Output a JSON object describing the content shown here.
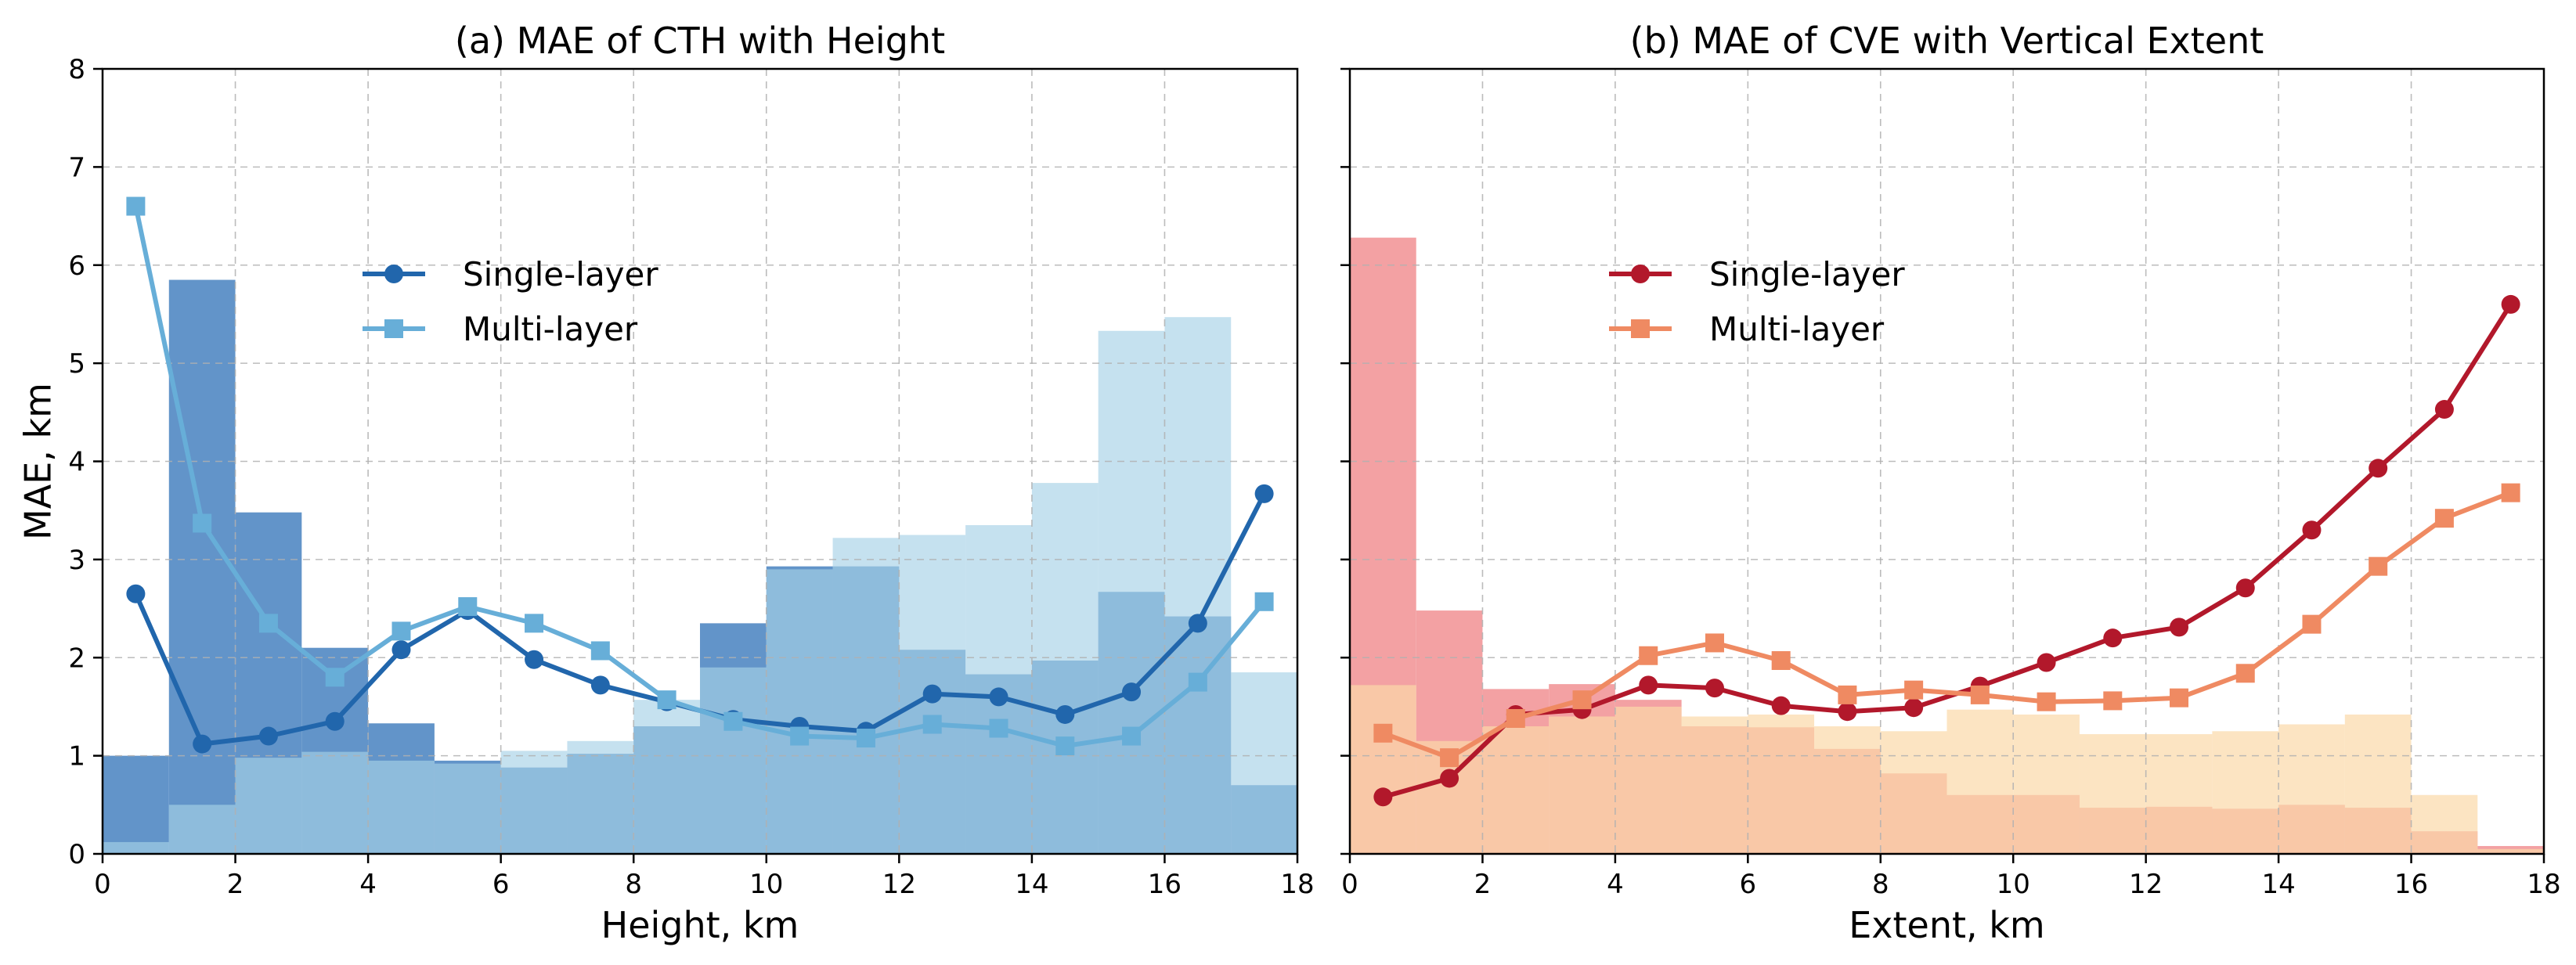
{
  "figure": {
    "background": "#ffffff",
    "grid": true
  },
  "chart_data": [
    {
      "id": "a",
      "type": "line",
      "title": "(a) MAE of CTH with Height",
      "xlabel": "Height, km",
      "ylabel": "MAE, km",
      "xlim": [
        0,
        18
      ],
      "ylim": [
        0,
        8
      ],
      "xticks": [
        0,
        2,
        4,
        6,
        8,
        10,
        12,
        14,
        16,
        18
      ],
      "yticks": [
        0,
        1,
        2,
        3,
        4,
        5,
        6,
        7,
        8
      ],
      "x": [
        0.5,
        1.5,
        2.5,
        3.5,
        4.5,
        5.5,
        6.5,
        7.5,
        8.5,
        9.5,
        10.5,
        11.5,
        12.5,
        13.5,
        14.5,
        15.5,
        16.5,
        17.5
      ],
      "series": [
        {
          "name": "Single-layer",
          "marker": "circle",
          "color": "#2166ac",
          "values": [
            2.65,
            1.12,
            1.2,
            1.35,
            2.08,
            2.48,
            1.98,
            1.72,
            1.55,
            1.37,
            1.3,
            1.25,
            1.63,
            1.6,
            1.42,
            1.65,
            2.35,
            3.67
          ]
        },
        {
          "name": "Multi-layer",
          "marker": "square",
          "color": "#67aed8",
          "values": [
            6.6,
            3.37,
            2.35,
            1.8,
            2.27,
            2.52,
            2.35,
            2.07,
            1.57,
            1.35,
            1.2,
            1.18,
            1.32,
            1.28,
            1.1,
            1.2,
            1.75,
            2.57
          ]
        }
      ],
      "histograms": [
        {
          "name": "Single-layer distribution",
          "color": "#5a8ec6",
          "opacity": 0.95,
          "bin_edges": [
            0,
            1,
            2,
            3,
            4,
            5,
            6,
            7,
            8,
            9,
            10,
            11,
            12,
            13,
            14,
            15,
            16,
            17,
            18
          ],
          "values": [
            1.0,
            5.85,
            3.48,
            2.1,
            1.33,
            0.95,
            0.88,
            1.02,
            1.3,
            2.35,
            2.93,
            2.93,
            2.08,
            1.83,
            1.97,
            2.67,
            2.42,
            0.7
          ]
        },
        {
          "name": "Multi-layer distribution",
          "color": "#a6d1e6",
          "opacity": 0.65,
          "bin_edges": [
            0,
            1,
            2,
            3,
            4,
            5,
            6,
            7,
            8,
            9,
            10,
            11,
            12,
            13,
            14,
            15,
            16,
            17,
            18
          ],
          "values": [
            0.12,
            0.5,
            0.98,
            1.04,
            0.95,
            0.92,
            1.05,
            1.15,
            1.57,
            1.9,
            2.9,
            3.22,
            3.25,
            3.35,
            3.78,
            5.33,
            5.47,
            1.85
          ]
        }
      ],
      "legend": {
        "position": "upper-center"
      }
    },
    {
      "id": "b",
      "type": "line",
      "title": "(b) MAE of CVE with Vertical Extent",
      "xlabel": "Extent, km",
      "ylabel": "",
      "xlim": [
        0,
        18
      ],
      "ylim": [
        0,
        8
      ],
      "xticks": [
        0,
        2,
        4,
        6,
        8,
        10,
        12,
        14,
        16,
        18
      ],
      "yticks": [
        0,
        1,
        2,
        3,
        4,
        5,
        6,
        7,
        8
      ],
      "x": [
        0.5,
        1.5,
        2.5,
        3.5,
        4.5,
        5.5,
        6.5,
        7.5,
        8.5,
        9.5,
        10.5,
        11.5,
        12.5,
        13.5,
        14.5,
        15.5,
        16.5,
        17.5
      ],
      "series": [
        {
          "name": "Single-layer",
          "marker": "circle",
          "color": "#b2182b",
          "values": [
            0.58,
            0.77,
            1.42,
            1.47,
            1.72,
            1.69,
            1.51,
            1.45,
            1.49,
            1.71,
            1.95,
            2.2,
            2.31,
            2.71,
            3.3,
            3.93,
            4.53,
            5.6
          ]
        },
        {
          "name": "Multi-layer",
          "marker": "square",
          "color": "#ef8a62",
          "values": [
            1.23,
            0.98,
            1.38,
            1.57,
            2.02,
            2.15,
            1.97,
            1.62,
            1.67,
            1.62,
            1.55,
            1.56,
            1.59,
            1.84,
            2.34,
            2.93,
            3.42,
            3.68
          ]
        }
      ],
      "histograms": [
        {
          "name": "Single-layer distribution",
          "color": "#f3a1a3",
          "opacity": 1.0,
          "bin_edges": [
            0,
            1,
            2,
            3,
            4,
            5,
            6,
            7,
            8,
            9,
            10,
            11,
            12,
            13,
            14,
            15,
            16,
            17,
            18
          ],
          "values": [
            6.28,
            2.48,
            1.68,
            1.73,
            1.57,
            1.3,
            1.29,
            1.07,
            0.82,
            0.6,
            0.6,
            0.47,
            0.48,
            0.46,
            0.5,
            0.47,
            0.23,
            0.08
          ]
        },
        {
          "name": "Multi-layer distribution",
          "color": "#fbd8a8",
          "opacity": 0.7,
          "bin_edges": [
            0,
            1,
            2,
            3,
            4,
            5,
            6,
            7,
            8,
            9,
            10,
            11,
            12,
            13,
            14,
            15,
            16,
            17,
            18
          ],
          "values": [
            1.72,
            1.15,
            1.3,
            1.4,
            1.5,
            1.4,
            1.42,
            1.3,
            1.25,
            1.47,
            1.42,
            1.22,
            1.22,
            1.25,
            1.32,
            1.42,
            0.6,
            0.05
          ]
        }
      ],
      "legend": {
        "position": "upper-center"
      }
    }
  ]
}
